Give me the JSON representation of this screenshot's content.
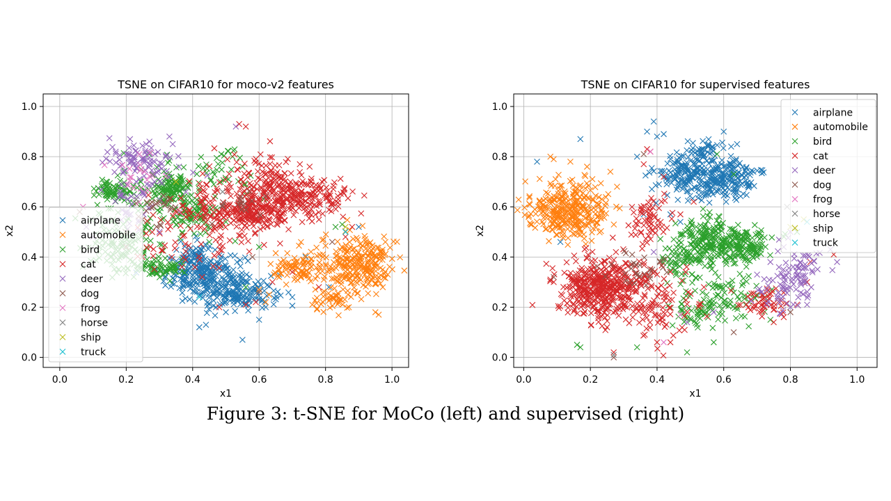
{
  "caption": "Figure 3: t-SNE for MoCo (left) and supervised (right)",
  "chart_data": [
    {
      "type": "scatter",
      "marker": "x",
      "title": "TSNE on CIFAR10 for moco-v2 features",
      "xlabel": "x1",
      "ylabel": "x2",
      "xlim": [
        -0.05,
        1.05
      ],
      "ylim": [
        -0.04,
        1.05
      ],
      "xticks": [
        "0.0",
        "0.2",
        "0.4",
        "0.6",
        "0.8",
        "1.0"
      ],
      "yticks": [
        "0.0",
        "0.2",
        "0.4",
        "0.6",
        "0.8",
        "1.0"
      ],
      "grid": true,
      "legend_position": "lower-left",
      "series": [
        {
          "name": "airplane",
          "color": "#1f77b4",
          "clusters": [
            [
              0.44,
              0.32,
              0.06,
              0.05,
              220
            ],
            [
              0.55,
              0.26,
              0.05,
              0.03,
              140
            ],
            [
              0.4,
              0.38,
              0.03,
              0.04,
              60
            ]
          ],
          "points": [
            [
              0.42,
              0.12
            ],
            [
              0.44,
              0.13
            ],
            [
              0.55,
              0.07
            ],
            [
              0.5,
              0.18
            ],
            [
              0.39,
              0.43
            ],
            [
              0.6,
              0.15
            ],
            [
              0.62,
              0.2
            ],
            [
              0.47,
              0.2
            ],
            [
              0.52,
              0.29
            ],
            [
              0.38,
              0.31
            ],
            [
              0.81,
              0.28
            ],
            [
              0.9,
              0.52
            ],
            [
              0.74,
              0.4
            ],
            [
              0.7,
              0.24
            ],
            [
              0.66,
              0.33
            ]
          ]
        },
        {
          "name": "automobile",
          "color": "#ff7f0e",
          "clusters": [
            [
              0.9,
              0.38,
              0.06,
              0.06,
              260
            ],
            [
              0.72,
              0.35,
              0.04,
              0.03,
              80
            ],
            [
              0.82,
              0.22,
              0.03,
              0.03,
              40
            ]
          ],
          "points": [
            [
              0.95,
              0.18
            ],
            [
              0.96,
              0.17
            ],
            [
              0.63,
              0.25
            ],
            [
              0.62,
              0.22
            ],
            [
              0.76,
              0.21
            ],
            [
              0.98,
              0.46
            ],
            [
              0.66,
              0.35
            ],
            [
              0.87,
              0.2
            ],
            [
              0.6,
              0.27
            ]
          ]
        },
        {
          "name": "bird",
          "color": "#2ca02c",
          "clusters": [
            [
              0.34,
              0.67,
              0.03,
              0.03,
              120
            ],
            [
              0.18,
              0.43,
              0.05,
              0.05,
              90
            ],
            [
              0.3,
              0.36,
              0.04,
              0.02,
              70
            ],
            [
              0.16,
              0.67,
              0.03,
              0.02,
              60
            ],
            [
              0.4,
              0.56,
              0.04,
              0.03,
              70
            ],
            [
              0.24,
              0.6,
              0.08,
              0.1,
              80
            ],
            [
              0.48,
              0.73,
              0.06,
              0.05,
              40
            ]
          ],
          "points": [
            [
              0.52,
              0.8
            ],
            [
              0.55,
              0.76
            ],
            [
              0.45,
              0.46
            ],
            [
              0.85,
              0.53
            ],
            [
              0.83,
              0.52
            ],
            [
              0.56,
              0.28
            ],
            [
              0.6,
              0.44
            ],
            [
              0.5,
              0.54
            ]
          ]
        },
        {
          "name": "cat",
          "color": "#d62728",
          "clusters": [
            [
              0.72,
              0.64,
              0.08,
              0.04,
              220
            ],
            [
              0.58,
              0.57,
              0.06,
              0.04,
              180
            ],
            [
              0.62,
              0.72,
              0.04,
              0.05,
              80
            ],
            [
              0.47,
              0.6,
              0.06,
              0.08,
              90
            ],
            [
              0.35,
              0.48,
              0.08,
              0.08,
              60
            ]
          ],
          "points": [
            [
              0.54,
              0.93
            ],
            [
              0.56,
              0.92
            ],
            [
              0.48,
              0.2
            ],
            [
              0.56,
              0.21
            ],
            [
              0.7,
              0.34
            ],
            [
              0.59,
              0.22
            ],
            [
              0.88,
              0.52
            ],
            [
              0.86,
              0.48
            ],
            [
              0.64,
              0.3
            ],
            [
              0.78,
              0.28
            ]
          ]
        },
        {
          "name": "deer",
          "color": "#9467bd",
          "clusters": [
            [
              0.22,
              0.8,
              0.04,
              0.03,
              50
            ],
            [
              0.28,
              0.76,
              0.05,
              0.05,
              40
            ],
            [
              0.2,
              0.6,
              0.04,
              0.06,
              35
            ]
          ],
          "points": [
            [
              0.33,
              0.88
            ],
            [
              0.34,
              0.85
            ],
            [
              0.26,
              0.85
            ],
            [
              0.27,
              0.86
            ],
            [
              0.53,
              0.92
            ],
            [
              0.1,
              0.48
            ],
            [
              0.08,
              0.52
            ],
            [
              0.3,
              0.5
            ],
            [
              0.38,
              0.66
            ],
            [
              0.23,
              0.7
            ]
          ]
        },
        {
          "name": "dog",
          "color": "#8c564b",
          "clusters": [
            [
              0.3,
              0.6,
              0.05,
              0.05,
              25
            ],
            [
              0.56,
              0.62,
              0.04,
              0.03,
              15
            ]
          ],
          "points": [
            [
              0.06,
              0.58
            ],
            [
              0.2,
              0.44
            ],
            [
              0.58,
              0.4
            ],
            [
              0.6,
              0.26
            ],
            [
              0.82,
              0.46
            ]
          ]
        },
        {
          "name": "frog",
          "color": "#e377c2",
          "clusters": [
            [
              0.25,
              0.72,
              0.04,
              0.05,
              20
            ]
          ],
          "points": [
            [
              0.07,
              0.6
            ],
            [
              0.24,
              0.81
            ],
            [
              0.36,
              0.58
            ]
          ]
        },
        {
          "name": "horse",
          "color": "#7f7f7f",
          "clusters": [],
          "points": [
            [
              0.28,
              0.73
            ],
            [
              0.49,
              0.66
            ],
            [
              0.23,
              0.63
            ]
          ]
        },
        {
          "name": "ship",
          "color": "#bcbd22",
          "clusters": [],
          "points": [
            [
              0.35,
              0.7
            ],
            [
              0.86,
              0.52
            ]
          ]
        },
        {
          "name": "truck",
          "color": "#17becf",
          "clusters": [],
          "points": [
            [
              0.86,
              0.5
            ],
            [
              0.42,
              0.24
            ]
          ]
        }
      ]
    },
    {
      "type": "scatter",
      "marker": "x",
      "title": "TSNE on CIFAR10 for supervised features",
      "xlabel": "x1",
      "ylabel": "x2",
      "xlim": [
        -0.03,
        1.06
      ],
      "ylim": [
        -0.04,
        1.05
      ],
      "xticks": [
        "0.0",
        "0.2",
        "0.4",
        "0.6",
        "0.8",
        "1.0"
      ],
      "yticks": [
        "0.0",
        "0.2",
        "0.4",
        "0.6",
        "0.8",
        "1.0"
      ],
      "grid": true,
      "legend_position": "upper-right",
      "series": [
        {
          "name": "airplane",
          "color": "#1f77b4",
          "clusters": [
            [
              0.6,
              0.71,
              0.05,
              0.04,
              220
            ],
            [
              0.47,
              0.73,
              0.04,
              0.04,
              120
            ],
            [
              0.55,
              0.82,
              0.03,
              0.03,
              40
            ]
          ],
          "points": [
            [
              0.39,
              0.94
            ],
            [
              0.37,
              0.9
            ],
            [
              0.17,
              0.87
            ],
            [
              0.34,
              0.8
            ],
            [
              0.4,
              0.88
            ],
            [
              0.42,
              0.89
            ],
            [
              0.6,
              0.9
            ],
            [
              0.64,
              0.85
            ],
            [
              0.04,
              0.78
            ],
            [
              0.36,
              0.57
            ],
            [
              0.44,
              0.57
            ],
            [
              0.11,
              0.46
            ],
            [
              0.47,
              0.54
            ]
          ]
        },
        {
          "name": "automobile",
          "color": "#ff7f0e",
          "clusters": [
            [
              0.13,
              0.58,
              0.06,
              0.06,
              320
            ]
          ],
          "points": [
            [
              0.08,
              0.8
            ],
            [
              0.09,
              0.79
            ],
            [
              0.14,
              0.78
            ],
            [
              0.26,
              0.74
            ],
            [
              0.19,
              0.76
            ],
            [
              0.18,
              0.49
            ],
            [
              0.28,
              0.68
            ]
          ]
        },
        {
          "name": "bird",
          "color": "#2ca02c",
          "clusters": [
            [
              0.56,
              0.46,
              0.05,
              0.05,
              220
            ],
            [
              0.67,
              0.45,
              0.04,
              0.03,
              110
            ],
            [
              0.46,
              0.4,
              0.03,
              0.04,
              60
            ],
            [
              0.6,
              0.25,
              0.08,
              0.06,
              80
            ],
            [
              0.53,
              0.18,
              0.05,
              0.03,
              50
            ]
          ],
          "points": [
            [
              0.58,
              0.81
            ],
            [
              0.63,
              0.73
            ],
            [
              0.16,
              0.05
            ],
            [
              0.17,
              0.04
            ],
            [
              0.49,
              0.02
            ],
            [
              0.57,
              0.06
            ],
            [
              0.74,
              0.15
            ],
            [
              0.34,
              0.04
            ],
            [
              0.82,
              0.5
            ]
          ]
        },
        {
          "name": "cat",
          "color": "#d62728",
          "clusters": [
            [
              0.22,
              0.28,
              0.06,
              0.06,
              300
            ],
            [
              0.3,
              0.28,
              0.07,
              0.07,
              180
            ],
            [
              0.44,
              0.18,
              0.05,
              0.05,
              50
            ],
            [
              0.38,
              0.55,
              0.03,
              0.05,
              60
            ],
            [
              0.73,
              0.22,
              0.05,
              0.03,
              50
            ]
          ],
          "points": [
            [
              0.37,
              0.83
            ],
            [
              0.38,
              0.82
            ],
            [
              0.42,
              0.72
            ],
            [
              0.36,
              0.77
            ],
            [
              0.4,
              0.06
            ],
            [
              0.44,
              0.06
            ],
            [
              0.27,
              0.02
            ],
            [
              0.25,
              0.12
            ],
            [
              0.85,
              0.3
            ],
            [
              0.86,
              0.38
            ],
            [
              0.93,
              0.41
            ],
            [
              0.78,
              0.16
            ],
            [
              0.75,
              0.14
            ],
            [
              0.82,
              0.21
            ],
            [
              0.08,
              0.31
            ],
            [
              0.09,
              0.3
            ],
            [
              0.47,
              0.57
            ],
            [
              0.51,
              0.62
            ]
          ]
        },
        {
          "name": "deer",
          "color": "#9467bd",
          "clusters": [
            [
              0.82,
              0.34,
              0.04,
              0.05,
              70
            ],
            [
              0.76,
              0.25,
              0.04,
              0.04,
              30
            ]
          ],
          "points": [
            [
              0.94,
              0.38
            ],
            [
              0.92,
              0.43
            ],
            [
              0.85,
              0.21
            ],
            [
              0.8,
              0.2
            ],
            [
              0.74,
              0.38
            ],
            [
              0.7,
              0.33
            ],
            [
              0.57,
              0.18
            ],
            [
              0.8,
              0.5
            ],
            [
              0.39,
              0.42
            ],
            [
              0.49,
              0.14
            ],
            [
              0.78,
              0.44
            ]
          ]
        },
        {
          "name": "dog",
          "color": "#8c564b",
          "clusters": [
            [
              0.35,
              0.34,
              0.05,
              0.05,
              30
            ]
          ],
          "points": [
            [
              0.27,
              0.0
            ],
            [
              0.36,
              0.81
            ],
            [
              0.09,
              0.32
            ],
            [
              0.63,
              0.1
            ],
            [
              0.8,
              0.18
            ]
          ]
        },
        {
          "name": "frog",
          "color": "#e377c2",
          "clusters": [],
          "points": [
            [
              0.38,
              0.82
            ],
            [
              0.42,
              0.06
            ],
            [
              0.47,
              0.17
            ]
          ]
        },
        {
          "name": "horse",
          "color": "#7f7f7f",
          "clusters": [],
          "points": [
            [
              0.79,
              0.6
            ],
            [
              0.27,
              0.01
            ]
          ]
        },
        {
          "name": "ship",
          "color": "#bcbd22",
          "clusters": [],
          "points": [
            [
              0.8,
              0.52
            ],
            [
              0.84,
              0.55
            ]
          ]
        },
        {
          "name": "truck",
          "color": "#17becf",
          "clusters": [],
          "points": [
            [
              0.85,
              0.54
            ]
          ]
        }
      ]
    }
  ]
}
